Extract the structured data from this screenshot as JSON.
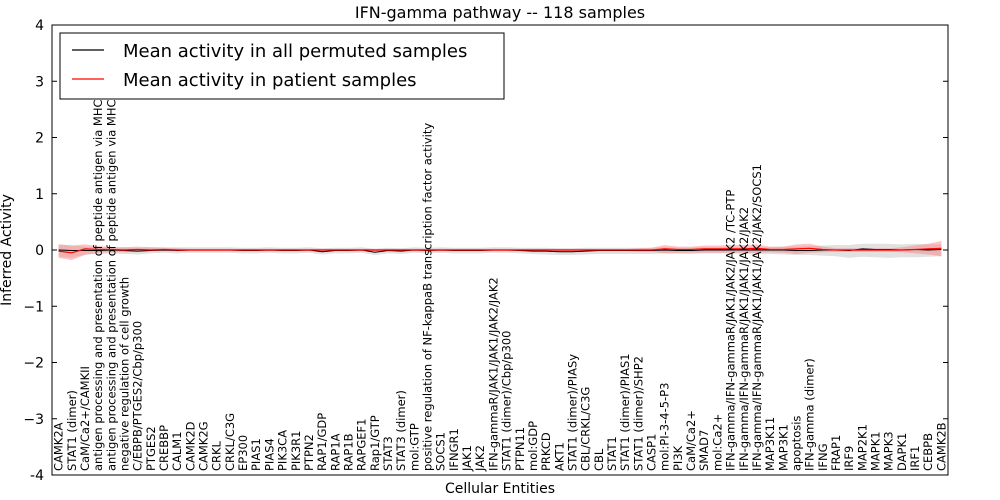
{
  "chart_data": {
    "type": "line",
    "title": "IFN-gamma pathway -- 118 samples",
    "xlabel": "Cellular Entities",
    "ylabel": "Inferred Activity",
    "ylim": [
      -4,
      4
    ],
    "yticks": [
      "-4",
      "−3",
      "−2",
      "−1",
      "0",
      "1",
      "2",
      "3",
      "4"
    ],
    "legend": {
      "position": "top-left",
      "entries": [
        {
          "label": "Mean activity in all permuted samples",
          "color": "#000000"
        },
        {
          "label": "Mean activity in patient samples",
          "color": "#ff0000"
        }
      ]
    },
    "band_colors": {
      "permuted": "#c8c8c8",
      "patient": "#ff7a7a"
    },
    "categories": [
      "CAMK2A",
      "STAT1 (dimer)",
      "CaM/Ca2+/CAMKII",
      "antigen processing and presentation of peptide antigen via MHC class I",
      "antigen processing and presentation of peptide antigen via MHC class II",
      "negative regulation of cell growth",
      "C/EBPB/PTGES2/Cbp/p300",
      "PTGES2",
      "CREBBP",
      "CALM1",
      "CAMK2D",
      "CAMK2G",
      "CRKL",
      "CRKL/C3G",
      "EP300",
      "PIAS1",
      "PIAS4",
      "PIK3CA",
      "PIK3R1",
      "PTPN2",
      "RAP1/GDP",
      "RAP1A",
      "RAP1B",
      "RAPGEF1",
      "Rap1/GTP",
      "STAT3",
      "STAT3 (dimer)",
      "mol:GTP",
      "positive regulation of NF-kappaB transcription factor activity",
      "SOCS1",
      "IFNGR1",
      "JAK1",
      "JAK2",
      "IFN-gammaR/JAK1/JAK1/JAK2/JAK2",
      "STAT1 (dimer)/Cbp/p300",
      "PTPN11",
      "mol:GDP",
      "PRKCD",
      "AKT1",
      "STAT1 (dimer)/PIASy",
      "CBL/CRKL/C3G",
      "CBL",
      "STAT1",
      "STAT1 (dimer)/PIAS1",
      "STAT1 (dimer)/SHP2",
      "CASP1",
      "mol:PI-3-4-5-P3",
      "PI3K",
      "CaM/Ca2+",
      "SMAD7",
      "mol:Ca2+",
      "IFN-gamma/IFN-gammaR/JAK1/JAK2/JAK2 /TC-PTP",
      "IFN-gamma/IFN-gammaR/JAK1/JAK1/JAK2/JAK2",
      "IFN-gamma/IFN-gammaR/JAK1/JAK1/JAK2/JAK2/SOCS1",
      "MAP3K11",
      "MAP3K1",
      "apoptosis",
      "IFN-gamma (dimer)",
      "IFNG",
      "FRAP1",
      "IRF9",
      "MAP2K1",
      "MAPK1",
      "MAPK3",
      "DAPK1",
      "IRF1",
      "CEBPB",
      "CAMK2B"
    ],
    "series": [
      {
        "name": "Mean activity in all permuted samples",
        "values": [
          0.0,
          -0.01,
          -0.01,
          -0.01,
          0.0,
          -0.01,
          -0.02,
          -0.01,
          0.0,
          -0.01,
          0.0,
          0.0,
          0.0,
          0.0,
          -0.01,
          -0.01,
          0.0,
          -0.01,
          -0.01,
          0.0,
          -0.03,
          -0.01,
          -0.01,
          0.0,
          -0.04,
          -0.01,
          -0.02,
          0.0,
          -0.01,
          0.0,
          -0.01,
          -0.01,
          -0.01,
          0.0,
          0.0,
          -0.01,
          -0.02,
          -0.02,
          -0.03,
          -0.03,
          -0.02,
          -0.01,
          -0.01,
          -0.01,
          -0.01,
          -0.01,
          0.0,
          -0.01,
          -0.01,
          0.0,
          0.0,
          0.0,
          0.0,
          0.0,
          0.0,
          0.0,
          -0.01,
          -0.01,
          0.0,
          0.0,
          -0.01,
          0.02,
          0.01,
          0.01,
          0.0,
          0.01,
          0.0,
          0.01
        ],
        "lower": [
          -0.12,
          -0.14,
          -0.08,
          -0.07,
          -0.06,
          -0.07,
          -0.08,
          -0.06,
          -0.05,
          -0.06,
          -0.05,
          -0.05,
          -0.05,
          -0.05,
          -0.06,
          -0.06,
          -0.05,
          -0.06,
          -0.06,
          -0.05,
          -0.08,
          -0.06,
          -0.06,
          -0.05,
          -0.09,
          -0.06,
          -0.07,
          -0.05,
          -0.06,
          -0.05,
          -0.06,
          -0.06,
          -0.06,
          -0.05,
          -0.05,
          -0.06,
          -0.07,
          -0.08,
          -0.09,
          -0.09,
          -0.08,
          -0.07,
          -0.07,
          -0.07,
          -0.07,
          -0.07,
          -0.06,
          -0.07,
          -0.07,
          -0.06,
          -0.06,
          -0.06,
          -0.07,
          -0.07,
          -0.07,
          -0.08,
          -0.09,
          -0.09,
          -0.1,
          -0.11,
          -0.14,
          -0.12,
          -0.13,
          -0.14,
          -0.13,
          -0.13,
          -0.12,
          -0.11
        ],
        "upper": [
          0.1,
          0.08,
          0.06,
          0.05,
          0.05,
          0.05,
          0.04,
          0.05,
          0.05,
          0.05,
          0.05,
          0.05,
          0.05,
          0.05,
          0.04,
          0.04,
          0.05,
          0.04,
          0.04,
          0.05,
          0.03,
          0.04,
          0.04,
          0.05,
          0.02,
          0.04,
          0.03,
          0.05,
          0.04,
          0.05,
          0.04,
          0.04,
          0.04,
          0.05,
          0.05,
          0.04,
          0.04,
          0.04,
          0.03,
          0.03,
          0.04,
          0.04,
          0.04,
          0.04,
          0.04,
          0.04,
          0.05,
          0.04,
          0.04,
          0.05,
          0.05,
          0.05,
          0.05,
          0.05,
          0.05,
          0.06,
          0.06,
          0.07,
          0.08,
          0.09,
          0.09,
          0.11,
          0.11,
          0.11,
          0.1,
          0.11,
          0.1,
          0.1
        ]
      },
      {
        "name": "Mean activity in patient samples",
        "values": [
          -0.02,
          -0.05,
          0.02,
          0.01,
          0.01,
          0.0,
          0.01,
          0.0,
          0.01,
          0.0,
          0.0,
          0.0,
          0.0,
          0.0,
          0.0,
          0.0,
          0.0,
          0.0,
          0.0,
          0.0,
          0.0,
          0.0,
          0.0,
          0.0,
          0.0,
          0.0,
          0.0,
          0.0,
          0.0,
          0.0,
          0.0,
          0.0,
          0.0,
          0.0,
          0.0,
          0.0,
          0.0,
          0.0,
          0.0,
          0.0,
          0.0,
          0.0,
          0.0,
          0.0,
          0.0,
          0.0,
          0.02,
          0.01,
          0.01,
          0.02,
          0.02,
          0.02,
          0.02,
          0.03,
          0.01,
          0.01,
          0.02,
          0.03,
          0.01,
          0.0,
          0.0,
          0.0,
          0.0,
          0.0,
          0.0,
          0.01,
          0.02,
          0.03
        ],
        "lower": [
          -0.14,
          -0.18,
          -0.09,
          -0.05,
          -0.04,
          -0.04,
          -0.03,
          -0.02,
          -0.02,
          -0.02,
          -0.02,
          -0.02,
          -0.02,
          -0.02,
          -0.02,
          -0.02,
          -0.02,
          -0.02,
          -0.02,
          -0.02,
          -0.02,
          -0.02,
          -0.02,
          -0.02,
          -0.02,
          -0.02,
          -0.02,
          -0.02,
          -0.02,
          -0.02,
          -0.02,
          -0.02,
          -0.02,
          -0.02,
          -0.02,
          -0.02,
          -0.02,
          -0.02,
          -0.02,
          -0.02,
          -0.02,
          -0.02,
          -0.02,
          -0.02,
          -0.03,
          -0.03,
          -0.06,
          -0.05,
          -0.05,
          -0.05,
          -0.05,
          -0.05,
          -0.05,
          -0.05,
          -0.04,
          -0.05,
          -0.07,
          -0.05,
          -0.04,
          -0.03,
          -0.03,
          -0.03,
          -0.03,
          -0.03,
          -0.04,
          -0.06,
          -0.08,
          -0.11
        ],
        "upper": [
          0.1,
          0.08,
          0.1,
          0.07,
          0.05,
          0.05,
          0.06,
          0.05,
          0.04,
          0.03,
          0.02,
          0.02,
          0.02,
          0.02,
          0.02,
          0.02,
          0.02,
          0.02,
          0.02,
          0.02,
          0.02,
          0.02,
          0.02,
          0.02,
          0.02,
          0.02,
          0.02,
          0.02,
          0.02,
          0.02,
          0.02,
          0.02,
          0.02,
          0.02,
          0.02,
          0.02,
          0.02,
          0.02,
          0.02,
          0.02,
          0.02,
          0.02,
          0.02,
          0.02,
          0.03,
          0.04,
          0.09,
          0.06,
          0.06,
          0.08,
          0.08,
          0.09,
          0.09,
          0.1,
          0.06,
          0.06,
          0.1,
          0.11,
          0.06,
          0.03,
          0.03,
          0.03,
          0.03,
          0.03,
          0.05,
          0.08,
          0.11,
          0.16
        ]
      }
    ]
  }
}
